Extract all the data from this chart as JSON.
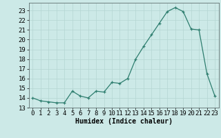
{
  "x": [
    0,
    1,
    2,
    3,
    4,
    5,
    6,
    7,
    8,
    9,
    10,
    11,
    12,
    13,
    14,
    15,
    16,
    17,
    18,
    19,
    20,
    21,
    22,
    23
  ],
  "y": [
    14.0,
    13.7,
    13.6,
    13.5,
    13.5,
    14.7,
    14.2,
    14.0,
    14.7,
    14.6,
    15.6,
    15.5,
    16.0,
    18.0,
    19.3,
    20.5,
    21.7,
    22.9,
    23.3,
    22.9,
    21.1,
    21.0,
    16.5,
    14.2
  ],
  "line_color": "#2d7d6e",
  "bg_color": "#cce9e7",
  "grid_color": "#b5d5d2",
  "xlabel": "Humidex (Indice chaleur)",
  "xlabel_fontsize": 7,
  "tick_fontsize": 6.5,
  "ylim": [
    13,
    23.8
  ],
  "xlim": [
    -0.5,
    23.5
  ],
  "yticks": [
    13,
    14,
    15,
    16,
    17,
    18,
    19,
    20,
    21,
    22,
    23
  ],
  "xticks": [
    0,
    1,
    2,
    3,
    4,
    5,
    6,
    7,
    8,
    9,
    10,
    11,
    12,
    13,
    14,
    15,
    16,
    17,
    18,
    19,
    20,
    21,
    22,
    23
  ]
}
